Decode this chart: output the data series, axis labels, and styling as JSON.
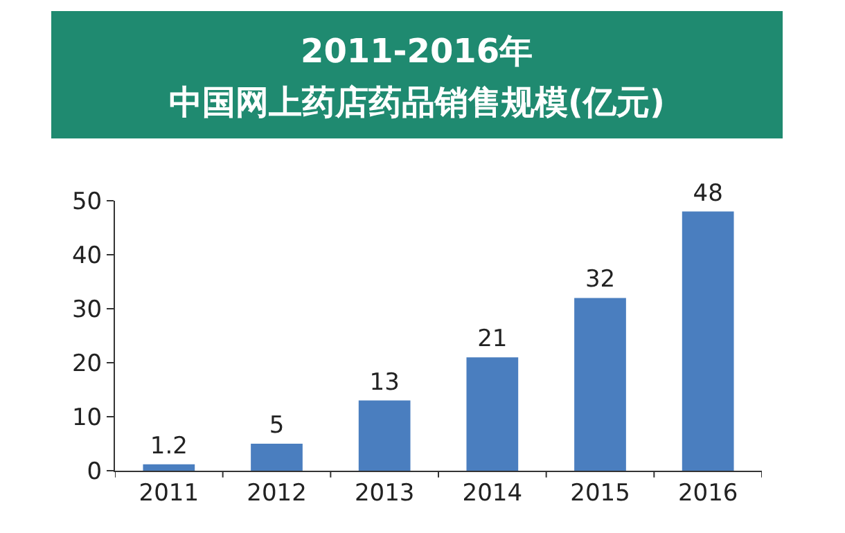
{
  "chart_data": {
    "type": "bar",
    "title": "2011-2016年",
    "subtitle": "中国网上药店药品销售规模(亿元)",
    "categories": [
      "2011",
      "2012",
      "2013",
      "2014",
      "2015",
      "2016"
    ],
    "values": [
      1.2,
      5,
      13,
      21,
      32,
      48
    ],
    "color": "#4a7ebf",
    "ylim": [
      0,
      50
    ],
    "yticks": [
      0,
      10,
      20,
      30,
      40,
      50
    ],
    "data_labels": true
  }
}
